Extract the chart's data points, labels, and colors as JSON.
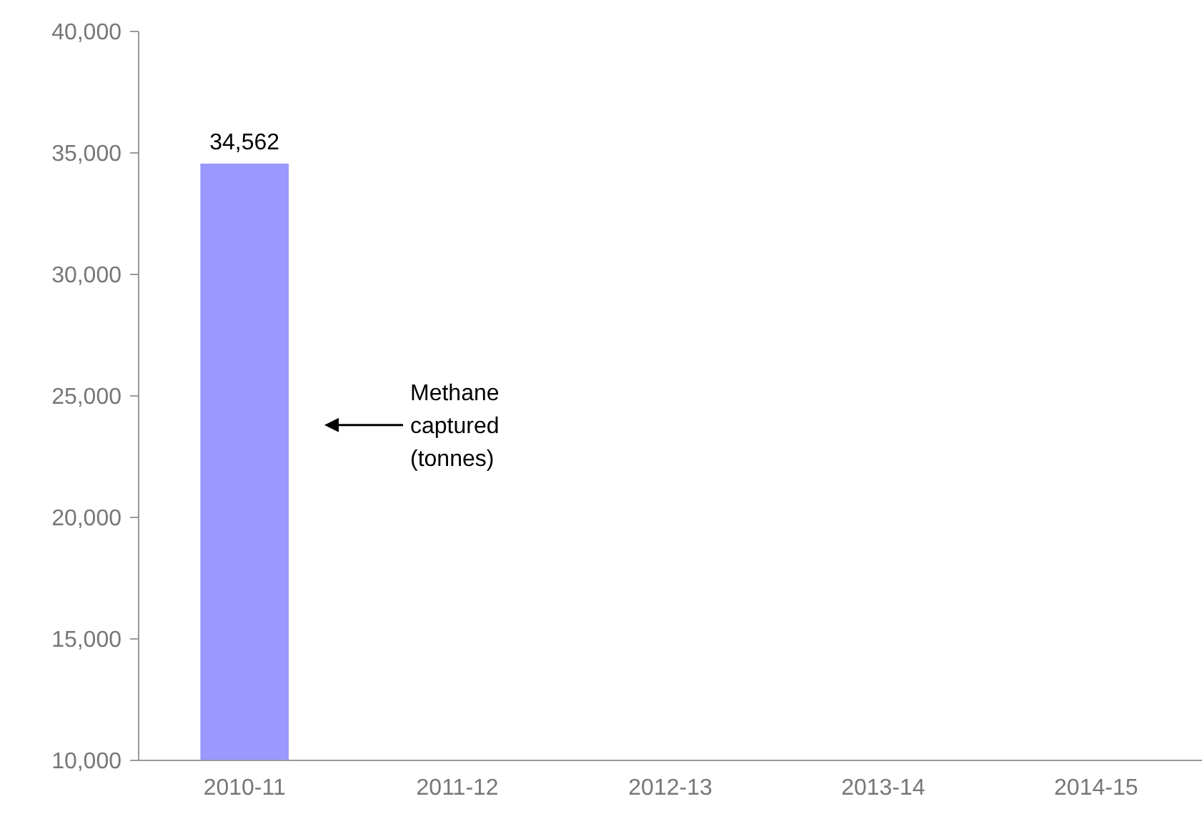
{
  "chart_data": {
    "type": "bar",
    "categories": [
      "2010-11",
      "2011-12",
      "2012-13",
      "2013-14",
      "2014-15"
    ],
    "values": [
      34562,
      null,
      null,
      null,
      null
    ],
    "value_labels": [
      "34,562",
      null,
      null,
      null,
      null
    ],
    "color": "#9999ff",
    "ylim": [
      10000,
      40000
    ],
    "yticks": [
      {
        "value": 10000,
        "label": "10,000"
      },
      {
        "value": 15000,
        "label": "15,000"
      },
      {
        "value": 20000,
        "label": "20,000"
      },
      {
        "value": 25000,
        "label": "25,000"
      },
      {
        "value": 30000,
        "label": "30,000"
      },
      {
        "value": 35000,
        "label": "35,000"
      },
      {
        "value": 40000,
        "label": "40,000"
      }
    ],
    "annotations": [
      "Methane captured (tonnes)"
    ]
  }
}
